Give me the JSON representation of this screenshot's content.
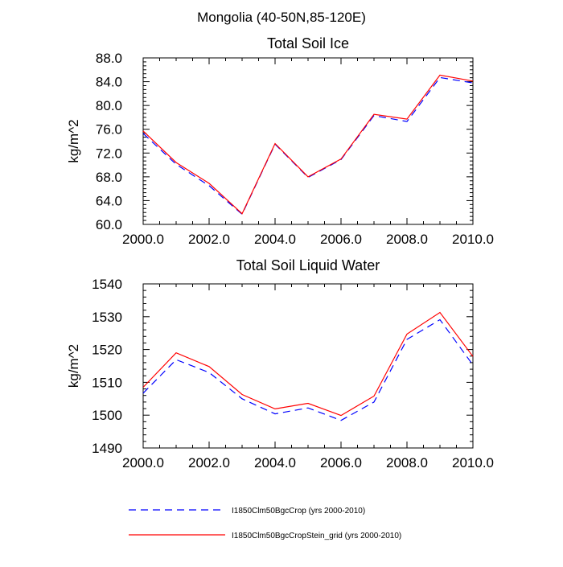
{
  "page_title": "Mongolia (40-50N,85-120E)",
  "chart_data": [
    {
      "type": "line",
      "title": "Total Soil Ice",
      "xlabel": "",
      "ylabel": "kg/m^2",
      "x": [
        2000,
        2001,
        2002,
        2003,
        2004,
        2005,
        2006,
        2007,
        2008,
        2009,
        2010
      ],
      "xlim": [
        2000,
        2010
      ],
      "ylim": [
        60,
        88
      ],
      "xticks": [
        2000,
        2002,
        2004,
        2006,
        2008,
        2010
      ],
      "xtick_labels": [
        "2000.0",
        "2002.0",
        "2004.0",
        "2006.0",
        "2008.0",
        "2010.0"
      ],
      "yticks": [
        60,
        64,
        68,
        72,
        76,
        80,
        84,
        88
      ],
      "ytick_labels": [
        "60.0",
        "64.0",
        "68.0",
        "72.0",
        "76.0",
        "80.0",
        "84.0",
        "88.0"
      ],
      "series": [
        {
          "name": "I1850Clm50BgcCrop (yrs 2000-2010)",
          "color": "#0000ff",
          "dash": "dashed",
          "values": [
            75.3,
            70.1,
            66.5,
            61.7,
            73.5,
            67.9,
            70.9,
            78.3,
            77.3,
            84.7,
            83.8
          ]
        },
        {
          "name": "I1850Clm50BgcCropStein_grid (yrs 2000-2010)",
          "color": "#ff0000",
          "dash": "solid",
          "values": [
            75.7,
            70.4,
            66.9,
            61.8,
            73.6,
            68.0,
            71.0,
            78.5,
            77.7,
            85.1,
            84.1
          ]
        }
      ]
    },
    {
      "type": "line",
      "title": "Total Soil Liquid Water",
      "xlabel": "",
      "ylabel": "kg/m^2",
      "x": [
        2000,
        2001,
        2002,
        2003,
        2004,
        2005,
        2006,
        2007,
        2008,
        2009,
        2010
      ],
      "xlim": [
        2000,
        2010
      ],
      "ylim": [
        1490,
        1540
      ],
      "xticks": [
        2000,
        2002,
        2004,
        2006,
        2008,
        2010
      ],
      "xtick_labels": [
        "2000.0",
        "2002.0",
        "2004.0",
        "2006.0",
        "2008.0",
        "2010.0"
      ],
      "yticks": [
        1490,
        1500,
        1510,
        1520,
        1530,
        1540
      ],
      "ytick_labels": [
        "1490",
        "1500",
        "1510",
        "1520",
        "1530",
        "1540"
      ],
      "series": [
        {
          "name": "I1850Clm50BgcCrop (yrs 2000-2010)",
          "color": "#0000ff",
          "dash": "dashed",
          "values": [
            1506.7,
            1516.9,
            1513.0,
            1505.0,
            1500.4,
            1502.2,
            1498.4,
            1504.0,
            1523.1,
            1529.1,
            1515.3
          ]
        },
        {
          "name": "I1850Clm50BgcCropStein_grid (yrs 2000-2010)",
          "color": "#ff0000",
          "dash": "solid",
          "values": [
            1508.5,
            1519.0,
            1514.8,
            1506.3,
            1501.9,
            1503.6,
            1499.9,
            1505.8,
            1524.7,
            1531.3,
            1517.9
          ]
        }
      ]
    }
  ],
  "legend": {
    "placement": "bottom",
    "items": [
      {
        "label": "I1850Clm50BgcCrop (yrs 2000-2010)",
        "color": "#0000ff",
        "dash": "dashed"
      },
      {
        "label": "I1850Clm50BgcCropStein_grid (yrs 2000-2010)",
        "color": "#ff0000",
        "dash": "solid"
      }
    ]
  }
}
